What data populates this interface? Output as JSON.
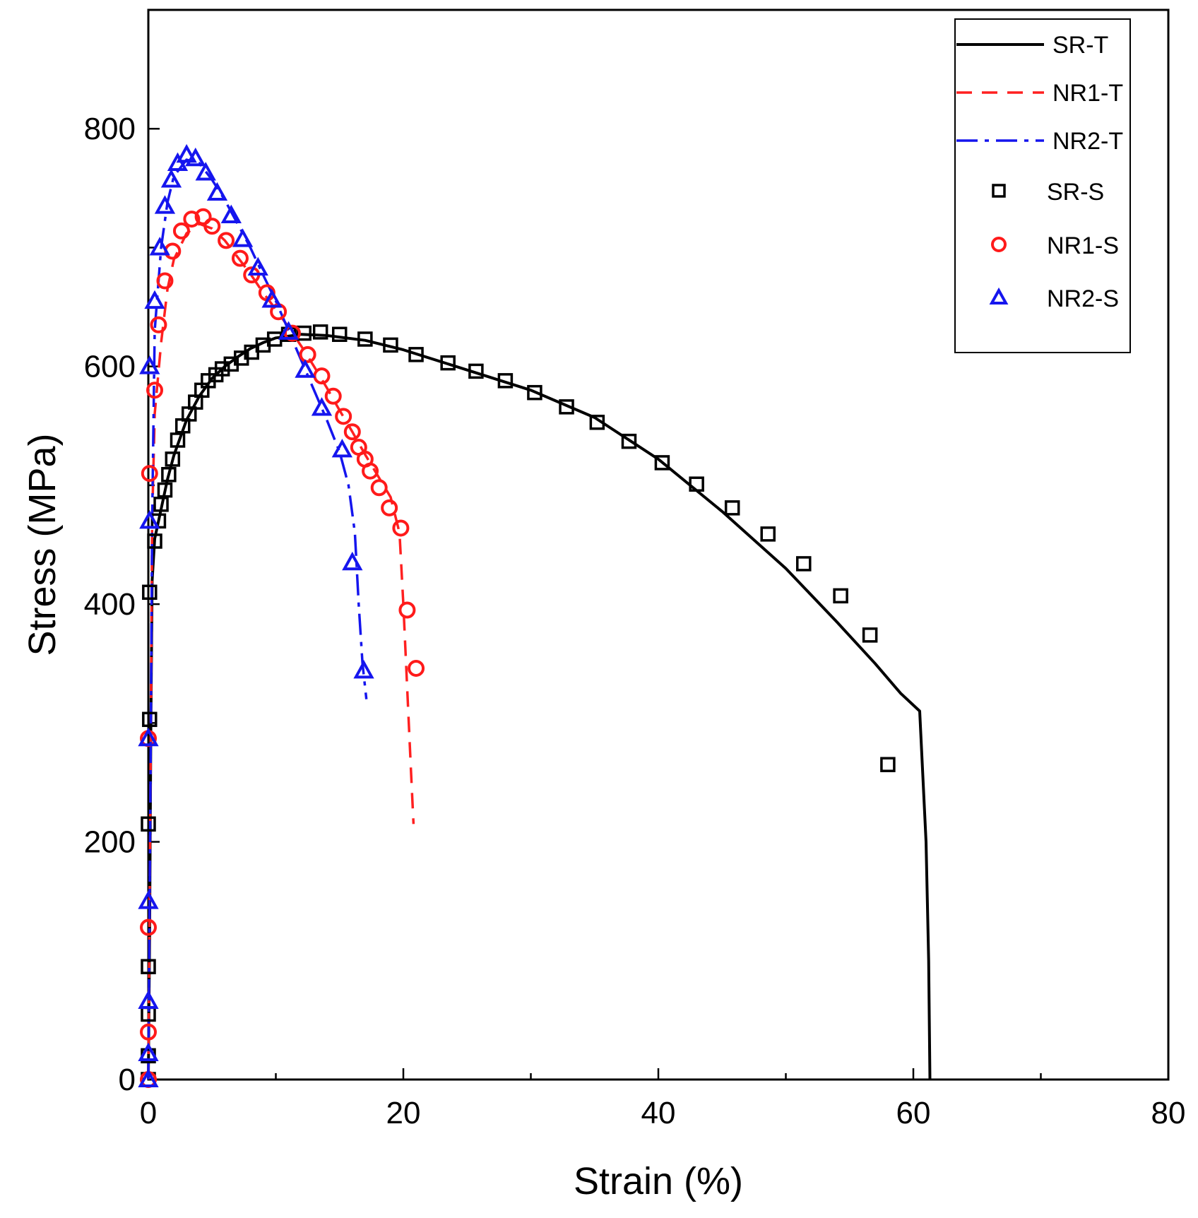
{
  "chart_data": {
    "type": "line",
    "title": "",
    "xlabel": "Strain (%)",
    "ylabel": "Stress (MPa)",
    "xlim": [
      0,
      80
    ],
    "ylim": [
      0,
      900
    ],
    "xticks": [
      0,
      20,
      40,
      60,
      80
    ],
    "yticks": [
      0,
      200,
      400,
      600,
      800
    ],
    "x_tick_labels": [
      "0",
      "20",
      "40",
      "60",
      "80"
    ],
    "y_tick_labels": [
      "0",
      "200",
      "400",
      "600",
      "800"
    ],
    "grid": false,
    "legend_position": "top-right",
    "series": [
      {
        "name": "SR-T",
        "kind": "line",
        "style": "solid",
        "color": "#000000",
        "points": [
          [
            0,
            0
          ],
          [
            0.1,
            120
          ],
          [
            0.2,
            300
          ],
          [
            0.3,
            420
          ],
          [
            0.5,
            455
          ],
          [
            1,
            480
          ],
          [
            1.5,
            505
          ],
          [
            2,
            525
          ],
          [
            3,
            555
          ],
          [
            4,
            575
          ],
          [
            5,
            590
          ],
          [
            6,
            600
          ],
          [
            7,
            608
          ],
          [
            8,
            615
          ],
          [
            9,
            620
          ],
          [
            10,
            624
          ],
          [
            12,
            627
          ],
          [
            14,
            626
          ],
          [
            17,
            622
          ],
          [
            20,
            614
          ],
          [
            25,
            597
          ],
          [
            30,
            580
          ],
          [
            35,
            557
          ],
          [
            40,
            522
          ],
          [
            45,
            478
          ],
          [
            50,
            430
          ],
          [
            54,
            385
          ],
          [
            57,
            350
          ],
          [
            59,
            325
          ],
          [
            60.5,
            310
          ],
          [
            61,
            200
          ],
          [
            61.2,
            100
          ],
          [
            61.3,
            0
          ]
        ]
      },
      {
        "name": "NR1-T",
        "kind": "line",
        "style": "dashed",
        "color": "#ff2020",
        "points": [
          [
            0,
            0
          ],
          [
            0.1,
            150
          ],
          [
            0.2,
            300
          ],
          [
            0.3,
            470
          ],
          [
            0.5,
            560
          ],
          [
            1,
            620
          ],
          [
            1.5,
            665
          ],
          [
            2,
            690
          ],
          [
            3,
            712
          ],
          [
            4,
            720
          ],
          [
            5,
            716
          ],
          [
            6,
            706
          ],
          [
            7,
            692
          ],
          [
            8,
            678
          ],
          [
            9,
            662
          ],
          [
            10,
            648
          ],
          [
            11,
            633
          ],
          [
            12,
            617
          ],
          [
            13,
            600
          ],
          [
            14,
            582
          ],
          [
            15,
            563
          ],
          [
            16,
            545
          ],
          [
            17,
            526
          ],
          [
            18,
            508
          ],
          [
            19,
            490
          ],
          [
            19.7,
            460
          ],
          [
            20,
            400
          ],
          [
            20.3,
            330
          ],
          [
            20.6,
            260
          ],
          [
            20.8,
            215
          ]
        ]
      },
      {
        "name": "NR2-T",
        "kind": "line",
        "style": "dashdot",
        "color": "#1515ee",
        "points": [
          [
            0,
            0
          ],
          [
            0.1,
            150
          ],
          [
            0.2,
            300
          ],
          [
            0.3,
            470
          ],
          [
            0.5,
            630
          ],
          [
            1,
            700
          ],
          [
            1.5,
            738
          ],
          [
            2,
            760
          ],
          [
            3,
            774
          ],
          [
            4,
            771
          ],
          [
            5,
            757
          ],
          [
            6,
            740
          ],
          [
            7,
            720
          ],
          [
            8,
            700
          ],
          [
            9,
            677
          ],
          [
            10,
            655
          ],
          [
            11,
            630
          ],
          [
            12,
            605
          ],
          [
            13,
            580
          ],
          [
            14,
            555
          ],
          [
            15,
            528
          ],
          [
            15.7,
            500
          ],
          [
            16.2,
            460
          ],
          [
            16.5,
            400
          ],
          [
            16.8,
            350
          ],
          [
            17.1,
            320
          ]
        ]
      },
      {
        "name": "SR-S",
        "kind": "scatter",
        "marker": "square",
        "color": "#000000",
        "points": [
          [
            0,
            0
          ],
          [
            0,
            20
          ],
          [
            0,
            55
          ],
          [
            0,
            95
          ],
          [
            0,
            215
          ],
          [
            0.1,
            303
          ],
          [
            0.1,
            410
          ],
          [
            0.5,
            453
          ],
          [
            0.8,
            470
          ],
          [
            1,
            484
          ],
          [
            1.3,
            496
          ],
          [
            1.6,
            509
          ],
          [
            1.9,
            522
          ],
          [
            2.3,
            538
          ],
          [
            2.7,
            550
          ],
          [
            3.2,
            560
          ],
          [
            3.7,
            570
          ],
          [
            4.2,
            580
          ],
          [
            4.7,
            588
          ],
          [
            5.3,
            593
          ],
          [
            5.8,
            598
          ],
          [
            6.5,
            602
          ],
          [
            7.3,
            607
          ],
          [
            8.1,
            612
          ],
          [
            9,
            618
          ],
          [
            9.9,
            623
          ],
          [
            11,
            627
          ],
          [
            12.2,
            628
          ],
          [
            13.5,
            629
          ],
          [
            15,
            627
          ],
          [
            17,
            623
          ],
          [
            19,
            618
          ],
          [
            21,
            610
          ],
          [
            23.5,
            603
          ],
          [
            25.7,
            596
          ],
          [
            28,
            588
          ],
          [
            30.3,
            578
          ],
          [
            32.8,
            566
          ],
          [
            35.2,
            553
          ],
          [
            37.7,
            537
          ],
          [
            40.3,
            519
          ],
          [
            43,
            501
          ],
          [
            45.8,
            481
          ],
          [
            48.6,
            459
          ],
          [
            51.4,
            434
          ],
          [
            54.3,
            407
          ],
          [
            56.6,
            374
          ],
          [
            58,
            265
          ]
        ]
      },
      {
        "name": "NR1-S",
        "kind": "scatter",
        "marker": "circle",
        "color": "#ff1a1a",
        "points": [
          [
            0,
            0
          ],
          [
            0,
            40
          ],
          [
            0,
            128
          ],
          [
            0,
            287
          ],
          [
            0.1,
            510
          ],
          [
            0.5,
            580
          ],
          [
            0.8,
            635
          ],
          [
            1.3,
            672
          ],
          [
            1.9,
            697
          ],
          [
            2.6,
            714
          ],
          [
            3.4,
            724
          ],
          [
            4.3,
            726
          ],
          [
            5,
            718
          ],
          [
            6.1,
            706
          ],
          [
            7.2,
            691
          ],
          [
            8.1,
            677
          ],
          [
            9.3,
            662
          ],
          [
            10.2,
            646
          ],
          [
            11.3,
            628
          ],
          [
            12.5,
            610
          ],
          [
            13.6,
            592
          ],
          [
            14.5,
            575
          ],
          [
            15.3,
            558
          ],
          [
            16,
            545
          ],
          [
            16.5,
            532
          ],
          [
            17,
            522
          ],
          [
            17.4,
            512
          ],
          [
            18.1,
            498
          ],
          [
            18.9,
            481
          ],
          [
            19.8,
            464
          ],
          [
            20.3,
            395
          ],
          [
            21,
            346
          ]
        ]
      },
      {
        "name": "NR2-S",
        "kind": "scatter",
        "marker": "triangle",
        "color": "#1515ee",
        "points": [
          [
            0,
            0
          ],
          [
            0,
            22
          ],
          [
            0,
            66
          ],
          [
            0,
            150
          ],
          [
            0,
            287
          ],
          [
            0.1,
            470
          ],
          [
            0.1,
            600
          ],
          [
            0.5,
            655
          ],
          [
            0.9,
            700
          ],
          [
            1.3,
            735
          ],
          [
            1.8,
            757
          ],
          [
            2.3,
            771
          ],
          [
            3,
            778
          ],
          [
            3.7,
            775
          ],
          [
            4.5,
            763
          ],
          [
            5.4,
            746
          ],
          [
            6.5,
            727
          ],
          [
            7.4,
            707
          ],
          [
            8.6,
            683
          ],
          [
            9.7,
            656
          ],
          [
            11,
            629
          ],
          [
            12.3,
            597
          ],
          [
            13.6,
            565
          ],
          [
            15.2,
            530
          ],
          [
            16,
            435
          ],
          [
            16.9,
            344
          ]
        ]
      }
    ]
  }
}
